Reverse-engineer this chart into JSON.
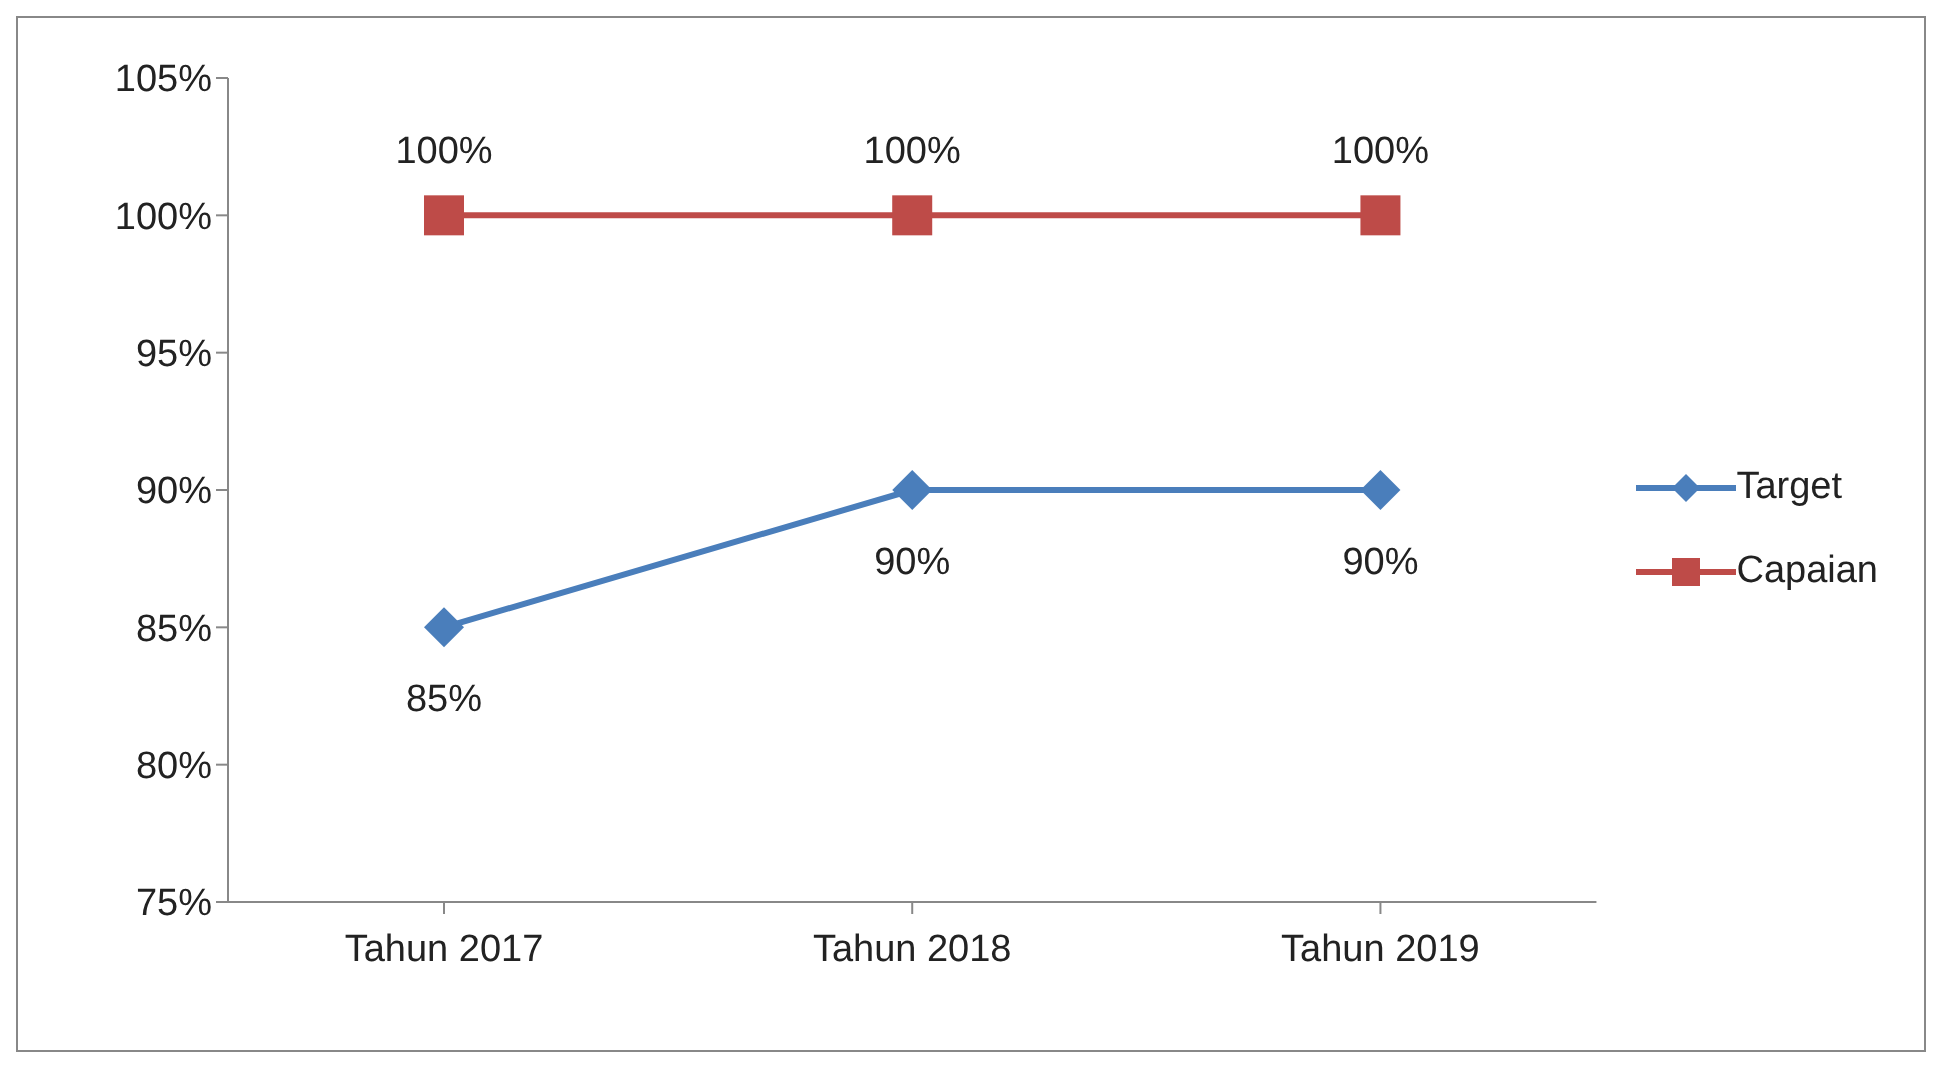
{
  "chart_data": {
    "type": "line",
    "categories": [
      "Tahun 2017",
      "Tahun 2018",
      "Tahun 2019"
    ],
    "series": [
      {
        "name": "Target",
        "color": "#4a7ebb",
        "values": [
          85,
          90,
          90
        ],
        "marker": "diamond",
        "value_labels": [
          "85%",
          "90%",
          "90%"
        ]
      },
      {
        "name": "Capaian",
        "color": "#be4b48",
        "values": [
          100,
          100,
          100
        ],
        "marker": "square",
        "value_labels": [
          "100%",
          "100%",
          "100%"
        ]
      }
    ],
    "ylim": [
      75,
      105
    ],
    "yticks": [
      {
        "value": 75,
        "label": "75%"
      },
      {
        "value": 80,
        "label": "80%"
      },
      {
        "value": 85,
        "label": "85%"
      },
      {
        "value": 90,
        "label": "90%"
      },
      {
        "value": 95,
        "label": "95%"
      },
      {
        "value": 100,
        "label": "100%"
      },
      {
        "value": 105,
        "label": "105%"
      }
    ],
    "grid": false,
    "legend": "right"
  }
}
